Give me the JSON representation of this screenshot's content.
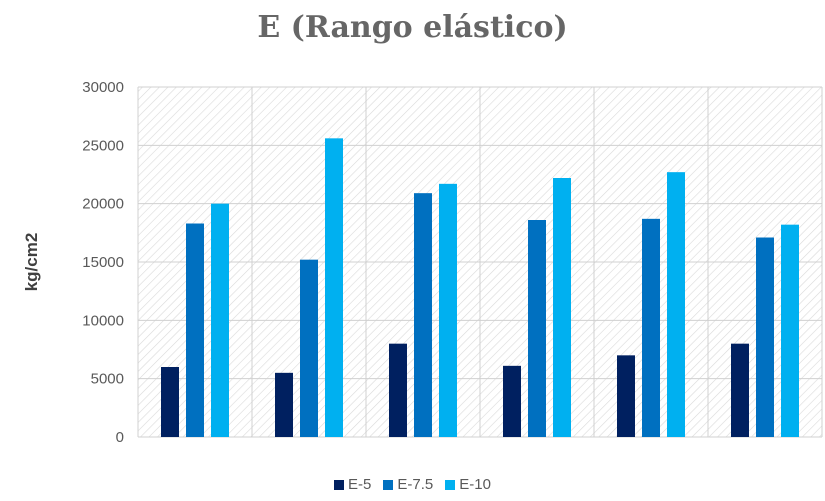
{
  "chart_data": {
    "type": "bar",
    "title": "E (Rango elástico)",
    "ylabel": "kg/cm2",
    "xlabel": "",
    "categories": [
      "",
      "",
      "",
      "",
      "",
      ""
    ],
    "ylim": [
      0,
      30000
    ],
    "yticks": [
      "0",
      "5000",
      "10000",
      "15000",
      "20000",
      "25000",
      "30000"
    ],
    "grid": true,
    "legend_position": "bottom",
    "series": [
      {
        "name": "E-5",
        "color": "#002060",
        "values": [
          6000,
          5500,
          8000,
          6100,
          7000,
          8000
        ]
      },
      {
        "name": "E-7.5",
        "color": "#0070C0",
        "values": [
          18300,
          15200,
          20900,
          18600,
          18700,
          17100
        ]
      },
      {
        "name": "E-10",
        "color": "#00B0F0",
        "values": [
          20000,
          25600,
          21700,
          22200,
          22700,
          18200
        ]
      }
    ]
  }
}
